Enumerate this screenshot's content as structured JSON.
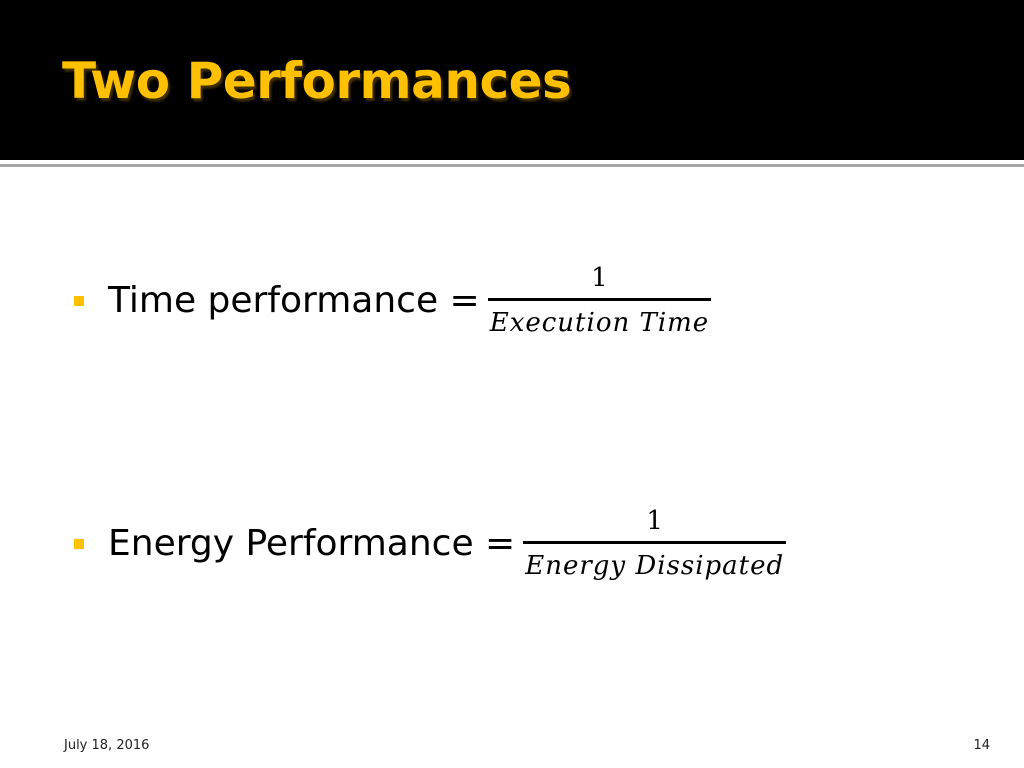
{
  "slide": {
    "title": "Two Performances",
    "bullets": [
      {
        "label": "Time performance =",
        "numerator": "1",
        "denominator": "Execution Time"
      },
      {
        "label": "Energy Performance =",
        "numerator": "1",
        "denominator": "Energy Dissipated"
      }
    ],
    "footer": {
      "date": "July 18, 2016",
      "page_number": "14"
    }
  },
  "colors": {
    "title_bar": "#000000",
    "title_text": "#ffc000",
    "bullet_marker": "#ffc000",
    "body_text": "#000000",
    "background": "#ffffff"
  }
}
